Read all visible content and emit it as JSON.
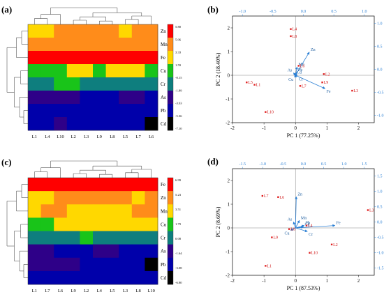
{
  "chart_data": [
    {
      "type": "heatmap",
      "panel_label": "(a)",
      "columns": [
        "L1",
        "L4",
        "L10",
        "L2",
        "L3",
        "L9",
        "L8",
        "L5",
        "L7",
        "L6"
      ],
      "rows": [
        "Zn",
        "Mn",
        "Fe",
        "Cu",
        "Cr",
        "As",
        "Pb",
        "Cd"
      ],
      "colorbar_ticks": [
        "5.80",
        "5.06",
        "3.33",
        "1.59",
        "-0.15",
        "-1.89",
        "-3.63",
        "-5.36",
        "-7.10"
      ],
      "palette": [
        "#000000",
        "#0000AA",
        "#2E0088",
        "#0E7E7E",
        "#19C419",
        "#FFD800",
        "#FF8C1A",
        "#FF0000"
      ],
      "levels": [
        [
          5,
          5,
          6,
          6,
          6,
          6,
          6,
          5,
          6,
          6
        ],
        [
          6,
          6,
          6,
          6,
          6,
          6,
          6,
          6,
          6,
          6
        ],
        [
          7,
          7,
          7,
          7,
          7,
          7,
          7,
          7,
          7,
          7
        ],
        [
          4,
          4,
          4,
          5,
          5,
          4,
          5,
          5,
          5,
          4
        ],
        [
          3,
          3,
          4,
          4,
          3,
          3,
          3,
          3,
          3,
          3
        ],
        [
          2,
          2,
          2,
          2,
          1,
          1,
          1,
          2,
          2,
          1
        ],
        [
          1,
          1,
          1,
          1,
          1,
          1,
          1,
          1,
          1,
          1
        ],
        [
          1,
          1,
          2,
          1,
          1,
          1,
          1,
          1,
          1,
          0
        ]
      ]
    },
    {
      "type": "scatter",
      "panel_label": "(b)",
      "xlabel": "PC 1 (77.25%)",
      "ylabel": "PC 2 (18.40%)",
      "xlim": [
        -2,
        2.5
      ],
      "ylim": [
        -2,
        2.5
      ],
      "xticks": [
        "-2",
        "-1",
        "0",
        "1",
        "2"
      ],
      "yticks": [
        "-2",
        "-1",
        "0",
        "1",
        "2"
      ],
      "top_ticks": [
        "-1.0",
        "-0.5",
        "0.0",
        "0.5",
        "1.0"
      ],
      "right_ticks": [
        "1.0",
        "0.5",
        "0.0",
        "-0.5",
        "-1.0"
      ],
      "points": [
        {
          "label": "L4",
          "x": -0.15,
          "y": 1.95
        },
        {
          "label": "L8",
          "x": -0.15,
          "y": 1.65
        },
        {
          "label": "L6",
          "x": 0.1,
          "y": 0.4
        },
        {
          "label": "L2",
          "x": 0.9,
          "y": 0.05
        },
        {
          "label": "L9",
          "x": 0.85,
          "y": -0.3
        },
        {
          "label": "L3",
          "x": 1.8,
          "y": -0.65
        },
        {
          "label": "L5",
          "x": -1.55,
          "y": -0.3
        },
        {
          "label": "L1",
          "x": -1.3,
          "y": -0.4
        },
        {
          "label": "L7",
          "x": 0.15,
          "y": -0.45
        },
        {
          "label": "L10",
          "x": -0.95,
          "y": -1.55
        }
      ],
      "loadings": [
        {
          "label": "Zn",
          "x": 0.35,
          "y": 0.78
        },
        {
          "label": "Fe",
          "x": 0.75,
          "y": -0.45
        },
        {
          "label": "Mn",
          "x": 0.04,
          "y": 0.28
        },
        {
          "label": "Pb",
          "x": 0.03,
          "y": 0.1
        },
        {
          "label": "As",
          "x": -0.05,
          "y": 0.08
        },
        {
          "label": "Cr",
          "x": 0.05,
          "y": -0.03
        },
        {
          "label": "Cd",
          "x": 0.0,
          "y": 0.01
        },
        {
          "label": "Cu",
          "x": -0.02,
          "y": -0.05
        }
      ]
    },
    {
      "type": "heatmap",
      "panel_label": "(c)",
      "columns": [
        "L1",
        "L7",
        "L6",
        "L9",
        "L2",
        "L4",
        "L5",
        "L3",
        "L8",
        "L10"
      ],
      "rows": [
        "Fe",
        "Zn",
        "Mn",
        "Cu",
        "Cr",
        "As",
        "Pb",
        "Cd"
      ],
      "colorbar_ticks": [
        "6.99",
        "5.23",
        "3.51",
        "1.79",
        "0.08",
        "-1.64",
        "-3.08",
        "-6.80"
      ],
      "palette": [
        "#000000",
        "#0000AA",
        "#2E0088",
        "#0E7E7E",
        "#19C419",
        "#FFD800",
        "#FF8C1A",
        "#FF0000"
      ],
      "levels": [
        [
          7,
          7,
          7,
          7,
          7,
          7,
          7,
          7,
          7,
          7
        ],
        [
          5,
          5,
          6,
          6,
          6,
          6,
          6,
          6,
          5,
          6
        ],
        [
          5,
          6,
          6,
          5,
          5,
          5,
          5,
          5,
          6,
          6
        ],
        [
          4,
          4,
          5,
          5,
          5,
          5,
          5,
          5,
          5,
          5
        ],
        [
          3,
          3,
          3,
          3,
          4,
          3,
          3,
          3,
          3,
          3
        ],
        [
          2,
          2,
          1,
          1,
          1,
          2,
          2,
          1,
          1,
          1
        ],
        [
          2,
          2,
          2,
          2,
          1,
          1,
          1,
          1,
          1,
          0
        ],
        [
          1,
          1,
          1,
          1,
          1,
          1,
          1,
          1,
          1,
          1
        ]
      ]
    },
    {
      "type": "scatter",
      "panel_label": "(d)",
      "xlabel": "PC 1 (87.53%)",
      "ylabel": "PC 2 (8.69%)",
      "xlim": [
        -2,
        2.5
      ],
      "ylim": [
        -2,
        2.5
      ],
      "xticks": [
        "-2",
        "-1",
        "0",
        "1",
        "2"
      ],
      "yticks": [
        "-2",
        "-1",
        "0",
        "1",
        "2"
      ],
      "top_ticks": [
        "-1.5",
        "-1.0",
        "-0.5",
        "0.0",
        "0.5",
        "1.0",
        "1.5"
      ],
      "right_ticks": [
        "1.5",
        "1.0",
        "0.5",
        "0.0",
        "-0.5",
        "-1.0",
        "-1.5"
      ],
      "points": [
        {
          "label": "L7",
          "x": -1.05,
          "y": 1.35
        },
        {
          "label": "L6",
          "x": -0.55,
          "y": 1.3
        },
        {
          "label": "L3",
          "x": 2.3,
          "y": 0.75
        },
        {
          "label": "L4",
          "x": 0.35,
          "y": 0.1
        },
        {
          "label": "L8",
          "x": -0.2,
          "y": -0.05
        },
        {
          "label": "L9",
          "x": -0.75,
          "y": -0.4
        },
        {
          "label": "L2",
          "x": 1.15,
          "y": -0.7
        },
        {
          "label": "L10",
          "x": 0.45,
          "y": -1.05
        },
        {
          "label": "L1",
          "x": -0.95,
          "y": -1.6
        }
      ],
      "loadings": [
        {
          "label": "Zn",
          "x": 0.02,
          "y": 1.05
        },
        {
          "label": "Fe",
          "x": 1.0,
          "y": 0.08
        },
        {
          "label": "Mn",
          "x": 0.1,
          "y": 0.25
        },
        {
          "label": "As",
          "x": -0.05,
          "y": 0.2
        },
        {
          "label": "Pb",
          "x": 0.22,
          "y": 0.08
        },
        {
          "label": "Cd",
          "x": 0.2,
          "y": 0.03
        },
        {
          "label": "Cr",
          "x": 0.3,
          "y": -0.12
        },
        {
          "label": "Cu",
          "x": -0.12,
          "y": -0.08
        }
      ]
    }
  ]
}
